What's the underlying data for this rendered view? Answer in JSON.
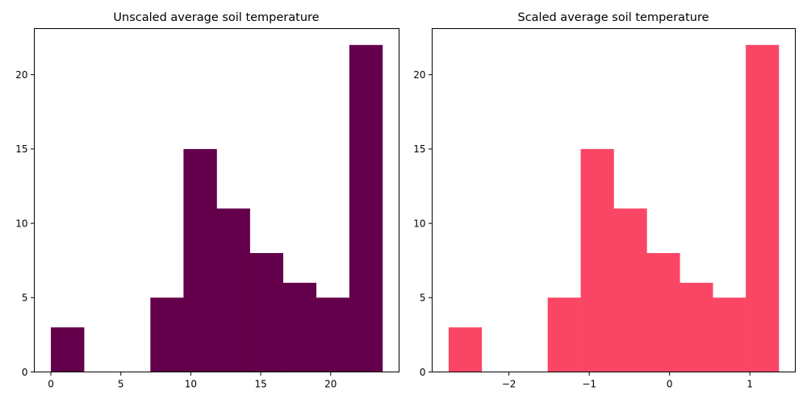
{
  "chart_data": [
    {
      "type": "bar",
      "title": "Unscaled average soil temperature",
      "xlabel": "",
      "ylabel": "",
      "color": "#64004b",
      "bin_edges": [
        0.0,
        2.37,
        4.74,
        7.11,
        9.48,
        11.85,
        14.22,
        16.59,
        18.96,
        21.33,
        23.7
      ],
      "values": [
        3,
        0,
        0,
        5,
        15,
        11,
        8,
        6,
        5,
        22
      ],
      "xlim": [
        -1.185,
        24.885
      ],
      "ylim": [
        0,
        23.1
      ],
      "xticks": [
        0,
        5,
        10,
        15,
        20
      ],
      "xtick_labels": [
        "0",
        "5",
        "10",
        "15",
        "20"
      ],
      "yticks": [
        0,
        5,
        10,
        15,
        20
      ],
      "ytick_labels": [
        "0",
        "5",
        "10",
        "15",
        "20"
      ]
    },
    {
      "type": "bar",
      "title": "Scaled average soil temperature",
      "xlabel": "",
      "ylabel": "",
      "color": "#fa4664",
      "bin_edges": [
        -2.75,
        -2.339,
        -1.928,
        -1.517,
        -1.106,
        -0.695,
        -0.284,
        0.127,
        0.538,
        0.949,
        1.36
      ],
      "values": [
        3,
        0,
        0,
        5,
        15,
        11,
        8,
        6,
        5,
        22
      ],
      "xlim": [
        -2.9555,
        1.5655
      ],
      "ylim": [
        0,
        23.1
      ],
      "xticks": [
        -2,
        -1,
        0,
        1
      ],
      "xtick_labels": [
        "−2",
        "−1",
        "0",
        "1"
      ],
      "yticks": [
        0,
        5,
        10,
        15,
        20
      ],
      "ytick_labels": [
        "0",
        "5",
        "10",
        "15",
        "20"
      ]
    }
  ]
}
